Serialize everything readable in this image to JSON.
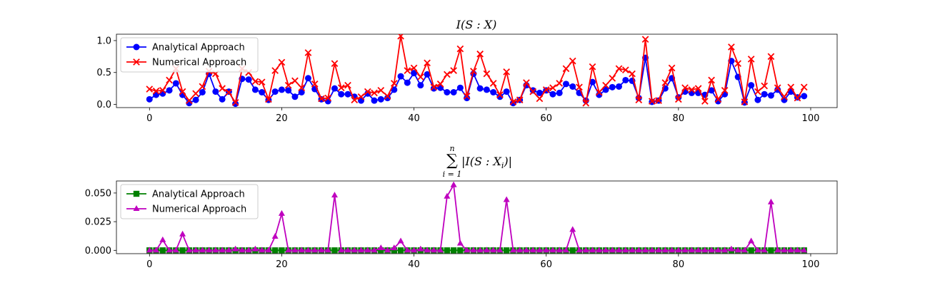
{
  "chart_data": [
    {
      "type": "line",
      "title": "I(S : X)",
      "xlabel": "",
      "ylabel": "",
      "xlim": [
        -5,
        104
      ],
      "ylim": [
        -0.05,
        1.1
      ],
      "xticks": [
        0,
        20,
        40,
        60,
        80,
        100
      ],
      "yticks": [
        0.0,
        0.5,
        1.0
      ],
      "xtick_labels": [
        "0",
        "20",
        "40",
        "60",
        "80",
        "100"
      ],
      "ytick_labels": [
        "0.0",
        "0.5",
        "1.0"
      ],
      "legend_position": "top-left",
      "series": [
        {
          "name": "Analytical Approach",
          "color": "#0000ff",
          "marker": "circle",
          "values": [
            0.08,
            0.15,
            0.17,
            0.22,
            0.33,
            0.15,
            0.02,
            0.07,
            0.19,
            0.48,
            0.2,
            0.08,
            0.2,
            0.01,
            0.4,
            0.39,
            0.23,
            0.19,
            0.07,
            0.2,
            0.23,
            0.22,
            0.12,
            0.19,
            0.41,
            0.24,
            0.08,
            0.05,
            0.25,
            0.16,
            0.16,
            0.12,
            0.06,
            0.17,
            0.06,
            0.08,
            0.1,
            0.23,
            0.44,
            0.34,
            0.49,
            0.3,
            0.47,
            0.25,
            0.26,
            0.19,
            0.19,
            0.26,
            0.1,
            0.48,
            0.25,
            0.23,
            0.19,
            0.12,
            0.2,
            0.02,
            0.07,
            0.3,
            0.22,
            0.18,
            0.22,
            0.16,
            0.18,
            0.32,
            0.28,
            0.18,
            0.06,
            0.35,
            0.15,
            0.23,
            0.27,
            0.28,
            0.38,
            0.37,
            0.1,
            0.73,
            0.04,
            0.06,
            0.25,
            0.41,
            0.11,
            0.2,
            0.18,
            0.18,
            0.15,
            0.22,
            0.05,
            0.16,
            0.68,
            0.43,
            0.03,
            0.3,
            0.07,
            0.16,
            0.14,
            0.23,
            0.07,
            0.2,
            0.11,
            0.13
          ]
        },
        {
          "name": "Numerical Approach",
          "color": "#ff0000",
          "marker": "x",
          "values": [
            0.24,
            0.21,
            0.22,
            0.38,
            0.56,
            0.2,
            0.06,
            0.17,
            0.28,
            0.52,
            0.48,
            0.25,
            0.19,
            0.03,
            0.56,
            0.5,
            0.36,
            0.35,
            0.08,
            0.53,
            0.66,
            0.3,
            0.37,
            0.26,
            0.81,
            0.32,
            0.09,
            0.1,
            0.64,
            0.26,
            0.3,
            0.07,
            0.12,
            0.2,
            0.18,
            0.22,
            0.13,
            0.33,
            1.07,
            0.53,
            0.57,
            0.43,
            0.65,
            0.27,
            0.32,
            0.47,
            0.53,
            0.87,
            0.13,
            0.52,
            0.79,
            0.48,
            0.33,
            0.15,
            0.51,
            0.04,
            0.07,
            0.34,
            0.2,
            0.09,
            0.23,
            0.26,
            0.33,
            0.56,
            0.68,
            0.27,
            0.02,
            0.59,
            0.19,
            0.3,
            0.41,
            0.56,
            0.54,
            0.48,
            0.07,
            1.02,
            0.05,
            0.06,
            0.34,
            0.57,
            0.08,
            0.26,
            0.23,
            0.25,
            0.05,
            0.38,
            0.08,
            0.22,
            0.9,
            0.64,
            0.04,
            0.71,
            0.2,
            0.29,
            0.75,
            0.26,
            0.12,
            0.27,
            0.1,
            0.27
          ]
        }
      ]
    },
    {
      "type": "line",
      "title": "∑ i=1 n |I(S : X_i)|",
      "title_parts": {
        "sum": "∑",
        "lower": "i = 1",
        "upper": "n",
        "expr": "|I(S : X",
        "sub": "i",
        "close": ")|"
      },
      "xlabel": "",
      "ylabel": "",
      "xlim": [
        -5,
        104
      ],
      "ylim": [
        -0.0029,
        0.0605
      ],
      "xticks": [
        0,
        20,
        40,
        60,
        80,
        100
      ],
      "yticks": [
        0.0,
        0.025,
        0.05
      ],
      "xtick_labels": [
        "0",
        "20",
        "40",
        "60",
        "80",
        "100"
      ],
      "ytick_labels": [
        "0.000",
        "0.025",
        "0.050"
      ],
      "legend_position": "top-left",
      "series": [
        {
          "name": "Analytical Approach",
          "color": "#008000",
          "marker": "square",
          "values": [
            0,
            0,
            0,
            0,
            0,
            0,
            0,
            0,
            0,
            0,
            0,
            0,
            0,
            0,
            0,
            0,
            0,
            0,
            0,
            0,
            0,
            0,
            0,
            0,
            0,
            0,
            0,
            0,
            0,
            0,
            0,
            0,
            0,
            0,
            0,
            0,
            0,
            0,
            0,
            0,
            0,
            0,
            0,
            0,
            0,
            0,
            0,
            0,
            0,
            0,
            0,
            0,
            0,
            0,
            0,
            0,
            0,
            0,
            0,
            0,
            0,
            0,
            0,
            0,
            0,
            0,
            0,
            0,
            0,
            0,
            0,
            0,
            0,
            0,
            0,
            0,
            0,
            0,
            0,
            0,
            0,
            0,
            0,
            0,
            0,
            0,
            0,
            0,
            0,
            0,
            0,
            0,
            0,
            0,
            0,
            0,
            0,
            0,
            0,
            0
          ]
        },
        {
          "name": "Numerical Approach",
          "color": "#bf00bf",
          "marker": "triangle",
          "values": [
            0,
            0,
            0.009,
            0,
            0,
            0.014,
            0,
            0,
            0,
            0,
            0,
            0,
            0,
            0.001,
            0,
            0,
            0.001,
            0,
            0,
            0.012,
            0.032,
            0,
            0,
            0,
            0,
            0,
            0,
            0,
            0.048,
            0,
            0,
            0,
            0,
            0,
            0,
            0.002,
            0,
            0.002,
            0.008,
            0,
            0,
            0.001,
            0,
            0,
            0,
            0.047,
            0.057,
            0.006,
            0,
            0,
            0,
            0,
            0,
            0,
            0.044,
            0,
            0,
            0,
            0,
            0,
            0,
            0,
            0,
            0,
            0.018,
            0,
            0,
            0,
            0,
            0,
            0,
            0,
            0,
            0,
            0,
            0,
            0,
            0,
            0,
            0,
            0,
            0,
            0,
            0,
            0,
            0,
            0,
            0,
            0.001,
            0,
            0,
            0.008,
            0,
            0,
            0.042,
            0,
            0,
            0,
            0,
            0
          ]
        }
      ]
    }
  ]
}
